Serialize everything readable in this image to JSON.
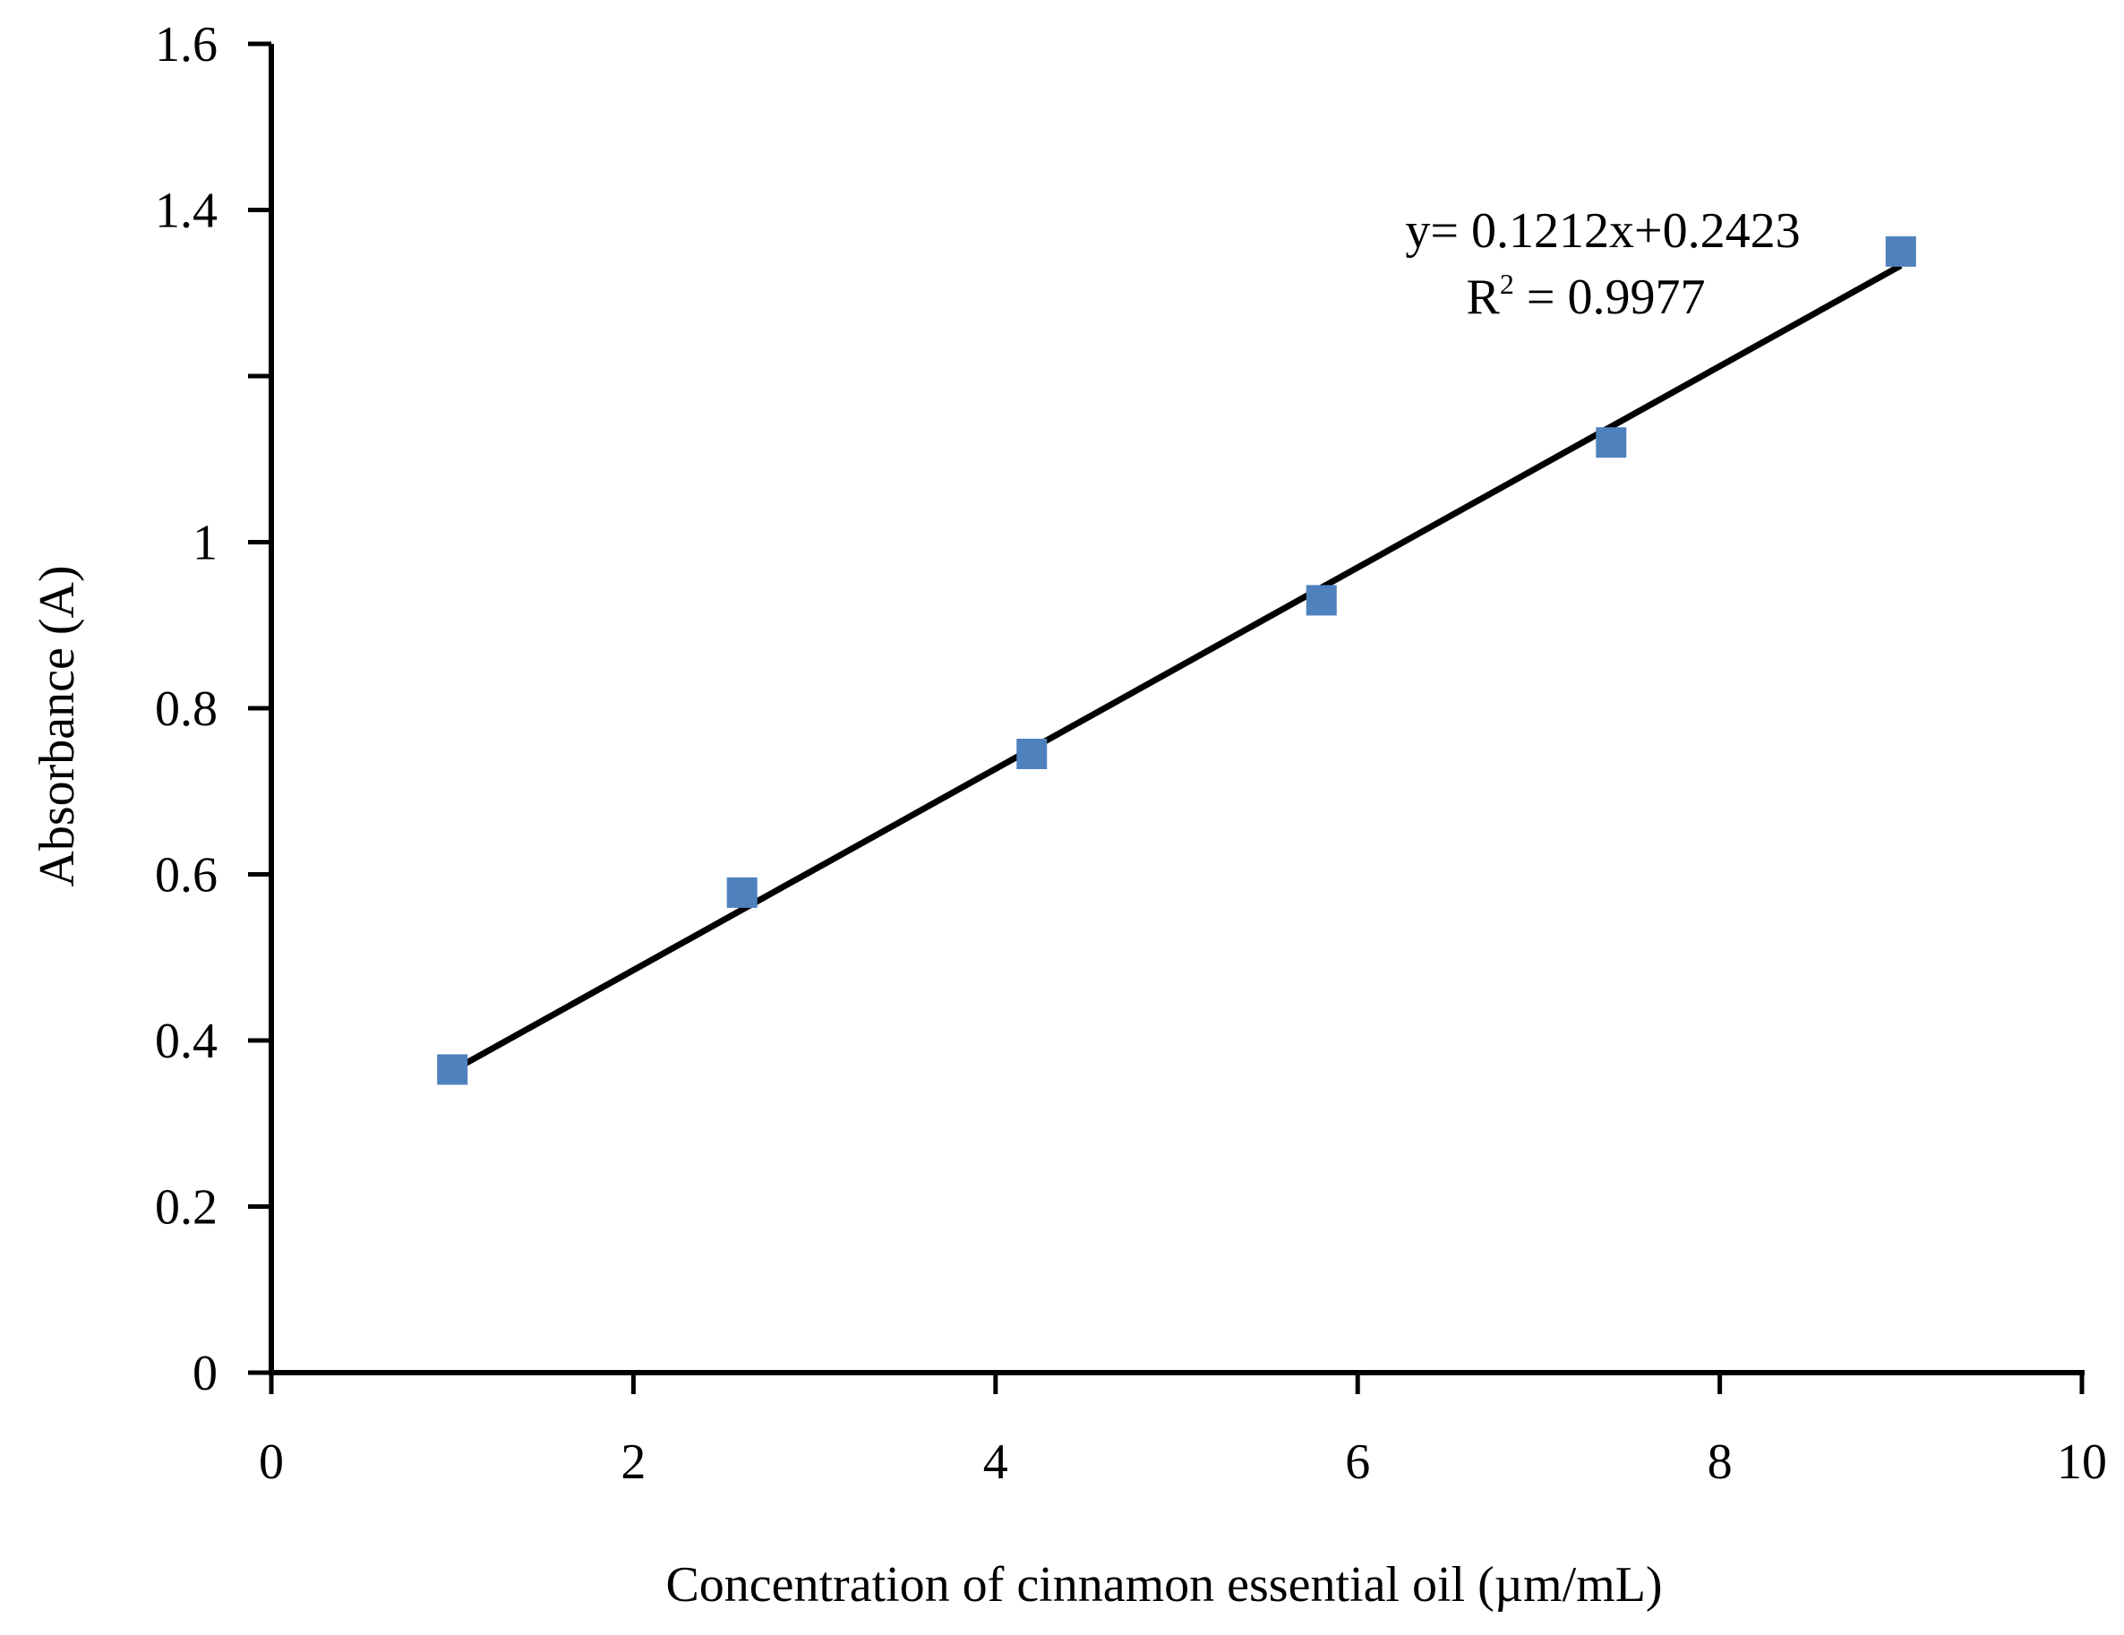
{
  "chart_data": {
    "type": "scatter",
    "title": "",
    "xlabel": "Concentration of cinnamon essential oil (µm/mL)",
    "ylabel": "Absorbance (A)",
    "xlim": [
      0,
      10
    ],
    "ylim": [
      0,
      1.6
    ],
    "x_ticks": [
      0,
      2,
      4,
      6,
      8,
      10
    ],
    "y_ticks": [
      0,
      0.2,
      0.4,
      0.6,
      0.8,
      1.0,
      1.2,
      1.4,
      1.6
    ],
    "x_tick_labels": [
      "0",
      "2",
      "4",
      "6",
      "8",
      "10"
    ],
    "y_tick_labels": [
      "0",
      "0.2",
      "0.4",
      "0.6",
      "0.8",
      "1",
      "",
      "1.4",
      "1.6"
    ],
    "grid": false,
    "series": [
      {
        "name": "Absorbance",
        "marker": "square",
        "color": "#4f81bd",
        "x": [
          1.0,
          2.6,
          4.2,
          5.8,
          7.4,
          9.0
        ],
        "y": [
          0.365,
          0.578,
          0.745,
          0.93,
          1.12,
          1.35
        ]
      }
    ],
    "trendline": {
      "slope": 0.1212,
      "intercept": 0.2423,
      "x_range": [
        1.0,
        9.0
      ],
      "color": "#000000"
    },
    "annotations": {
      "equation": "y= 0.1212x+0.2423",
      "r_label": "R",
      "r_sup": "2",
      "r_value": " = 0.9977"
    }
  }
}
